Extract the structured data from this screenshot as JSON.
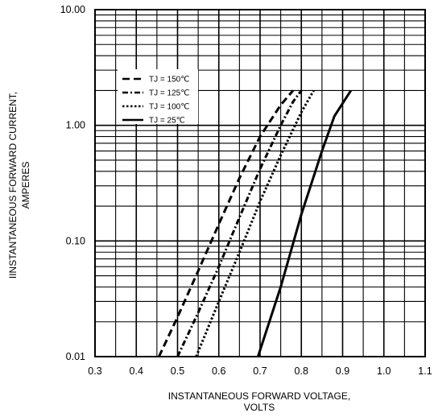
{
  "chart_data": {
    "type": "line",
    "title": "",
    "xlabel_line1": "INSTANTANEOUS FORWARD VOLTAGE,",
    "xlabel_line2": "VOLTS",
    "ylabel_line1": "IINSTANTANEOUS FORWARD CURRENT,",
    "ylabel_line2": "AMPERES",
    "xlim": [
      0.3,
      1.1
    ],
    "ylim": [
      0.01,
      10
    ],
    "yscale": "log",
    "grid": true,
    "legend_position": "top-left",
    "x_ticks": [
      "0.3",
      "0.4",
      "0.5",
      "0.6",
      "0.7",
      "0.8",
      "0.9",
      "1.0",
      "1.1"
    ],
    "y_ticks": [
      "0.01",
      "0.10",
      "1.00",
      "10.00"
    ],
    "series": [
      {
        "name": "TJ = 150℃",
        "style": "dashed",
        "x": [
          0.455,
          0.5,
          0.55,
          0.6,
          0.65,
          0.7,
          0.75,
          0.78
        ],
        "y": [
          0.01,
          0.022,
          0.055,
          0.14,
          0.35,
          0.8,
          1.5,
          2.0
        ]
      },
      {
        "name": "TJ = 125℃",
        "style": "dash-dot",
        "x": [
          0.5,
          0.55,
          0.6,
          0.65,
          0.7,
          0.75,
          0.78,
          0.8
        ],
        "y": [
          0.01,
          0.024,
          0.06,
          0.16,
          0.42,
          1.0,
          1.6,
          2.0
        ]
      },
      {
        "name": "TJ = 100℃",
        "style": "dotted",
        "x": [
          0.545,
          0.6,
          0.65,
          0.7,
          0.75,
          0.8,
          0.83
        ],
        "y": [
          0.01,
          0.03,
          0.08,
          0.22,
          0.55,
          1.3,
          2.0
        ]
      },
      {
        "name": "TJ = 25℃",
        "style": "solid",
        "x": [
          0.695,
          0.75,
          0.8,
          0.85,
          0.88,
          0.92
        ],
        "y": [
          0.01,
          0.04,
          0.17,
          0.6,
          1.2,
          2.0
        ]
      }
    ]
  }
}
